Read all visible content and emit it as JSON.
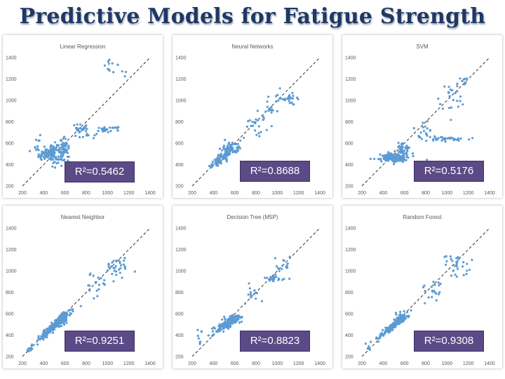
{
  "slide": {
    "title": "Predictive Models for Fatigue Strength"
  },
  "colors": {
    "title": "#1f3864",
    "points": "#5b9bd5",
    "badge": "#5c4a86",
    "diagonal": "#000000"
  },
  "chart_data": [
    {
      "type": "scatter",
      "title": "Linear Regression",
      "r2_label": "R²=0.5462",
      "xlim": [
        200,
        1400
      ],
      "ylim": [
        200,
        1400
      ],
      "xticks": [
        200,
        400,
        600,
        800,
        1000,
        1200,
        1400
      ],
      "yticks": [
        200,
        400,
        600,
        800,
        1000,
        1200,
        1400
      ],
      "reference_line": "y = x",
      "clusters": [
        {
          "cx": 480,
          "cy": 510,
          "sx": 60,
          "sy": 45,
          "n": 130
        },
        {
          "cx": 590,
          "cy": 560,
          "sx": 25,
          "sy": 45,
          "n": 40
        },
        {
          "cx": 370,
          "cy": 560,
          "sx": 25,
          "sy": 50,
          "n": 15
        },
        {
          "cx": 760,
          "cy": 730,
          "sx": 40,
          "sy": 25,
          "n": 22
        },
        {
          "cx": 1000,
          "cy": 730,
          "sx": 80,
          "sy": 12,
          "n": 25
        },
        {
          "cx": 800,
          "cy": 670,
          "sx": 60,
          "sy": 20,
          "n": 10
        },
        {
          "cx": 1050,
          "cy": 1290,
          "sx": 60,
          "sy": 40,
          "n": 14
        }
      ]
    },
    {
      "type": "scatter",
      "title": "Neural Networks",
      "r2_label": "R²=0.8688",
      "xlim": [
        200,
        1400
      ],
      "ylim": [
        200,
        1400
      ],
      "xticks": [
        200,
        400,
        600,
        800,
        1000,
        1200,
        1400
      ],
      "yticks": [
        200,
        400,
        600,
        800,
        1000,
        1200,
        1400
      ],
      "reference_line": "y = x",
      "clusters": [
        {
          "cx": 500,
          "cy": 480,
          "sx": 70,
          "sy": 60,
          "n": 110,
          "corr": 0.9
        },
        {
          "cx": 560,
          "cy": 560,
          "sx": 40,
          "sy": 30,
          "n": 40
        },
        {
          "cx": 800,
          "cy": 780,
          "sx": 60,
          "sy": 50,
          "n": 20
        },
        {
          "cx": 920,
          "cy": 900,
          "sx": 40,
          "sy": 40,
          "n": 14
        },
        {
          "cx": 1100,
          "cy": 1020,
          "sx": 60,
          "sy": 40,
          "n": 30
        }
      ]
    },
    {
      "type": "scatter",
      "title": "SVM",
      "r2_label": "R²=0.5176",
      "xlim": [
        200,
        1400
      ],
      "ylim": [
        200,
        1400
      ],
      "xticks": [
        200,
        400,
        600,
        800,
        1000,
        1200,
        1400
      ],
      "yticks": [
        200,
        400,
        600,
        800,
        1000,
        1200,
        1400
      ],
      "reference_line": "y = x",
      "clusters": [
        {
          "cx": 500,
          "cy": 460,
          "sx": 70,
          "sy": 25,
          "n": 120
        },
        {
          "cx": 580,
          "cy": 540,
          "sx": 30,
          "sy": 40,
          "n": 45
        },
        {
          "cx": 780,
          "cy": 700,
          "sx": 50,
          "sy": 40,
          "n": 20
        },
        {
          "cx": 1000,
          "cy": 640,
          "sx": 80,
          "sy": 12,
          "n": 35
        },
        {
          "cx": 1050,
          "cy": 1060,
          "sx": 60,
          "sy": 80,
          "n": 25
        },
        {
          "cx": 1150,
          "cy": 1180,
          "sx": 30,
          "sy": 20,
          "n": 8
        }
      ]
    },
    {
      "type": "scatter",
      "title": "Nearest Neighbor",
      "r2_label": "R²=0.9251",
      "xlim": [
        200,
        1400
      ],
      "ylim": [
        200,
        1400
      ],
      "xticks": [
        200,
        400,
        600,
        800,
        1000,
        1200,
        1400
      ],
      "yticks": [
        200,
        400,
        600,
        800,
        1000,
        1200,
        1400
      ],
      "reference_line": "y = x",
      "clusters": [
        {
          "cx": 480,
          "cy": 470,
          "sx": 80,
          "sy": 70,
          "n": 160,
          "corr": 0.95
        },
        {
          "cx": 580,
          "cy": 560,
          "sx": 25,
          "sy": 30,
          "n": 40
        },
        {
          "cx": 880,
          "cy": 870,
          "sx": 60,
          "sy": 60,
          "n": 20
        },
        {
          "cx": 1100,
          "cy": 1050,
          "sx": 60,
          "sy": 60,
          "n": 30
        },
        {
          "cx": 250,
          "cy": 260,
          "sx": 15,
          "sy": 15,
          "n": 5
        }
      ]
    },
    {
      "type": "scatter",
      "title": "Decision Tree (M5P)",
      "r2_label": "R²=0.8823",
      "xlim": [
        200,
        1400
      ],
      "ylim": [
        200,
        1400
      ],
      "xticks": [
        200,
        400,
        600,
        800,
        1000,
        1200,
        1400
      ],
      "yticks": [
        200,
        400,
        600,
        800,
        1000,
        1200,
        1400
      ],
      "reference_line": "y = x",
      "clusters": [
        {
          "cx": 520,
          "cy": 500,
          "sx": 60,
          "sy": 40,
          "n": 130,
          "corr": 0.8
        },
        {
          "cx": 590,
          "cy": 560,
          "sx": 30,
          "sy": 20,
          "n": 40
        },
        {
          "cx": 780,
          "cy": 780,
          "sx": 40,
          "sy": 40,
          "n": 15
        },
        {
          "cx": 960,
          "cy": 930,
          "sx": 50,
          "sy": 15,
          "n": 25
        },
        {
          "cx": 1050,
          "cy": 1060,
          "sx": 50,
          "sy": 50,
          "n": 15
        },
        {
          "cx": 260,
          "cy": 390,
          "sx": 20,
          "sy": 50,
          "n": 8
        }
      ]
    },
    {
      "type": "scatter",
      "title": "Random Forest",
      "r2_label": "R²=0.9308",
      "xlim": [
        200,
        1400
      ],
      "ylim": [
        200,
        1400
      ],
      "xticks": [
        200,
        400,
        600,
        800,
        1000,
        1200,
        1400
      ],
      "yticks": [
        200,
        400,
        600,
        800,
        1000,
        1200,
        1400
      ],
      "reference_line": "y = x",
      "clusters": [
        {
          "cx": 500,
          "cy": 490,
          "sx": 75,
          "sy": 60,
          "n": 150,
          "corr": 0.95
        },
        {
          "cx": 580,
          "cy": 560,
          "sx": 30,
          "sy": 25,
          "n": 40
        },
        {
          "cx": 850,
          "cy": 820,
          "sx": 50,
          "sy": 50,
          "n": 20
        },
        {
          "cx": 1100,
          "cy": 1060,
          "sx": 60,
          "sy": 60,
          "n": 30
        },
        {
          "cx": 260,
          "cy": 270,
          "sx": 15,
          "sy": 15,
          "n": 4
        }
      ]
    }
  ]
}
